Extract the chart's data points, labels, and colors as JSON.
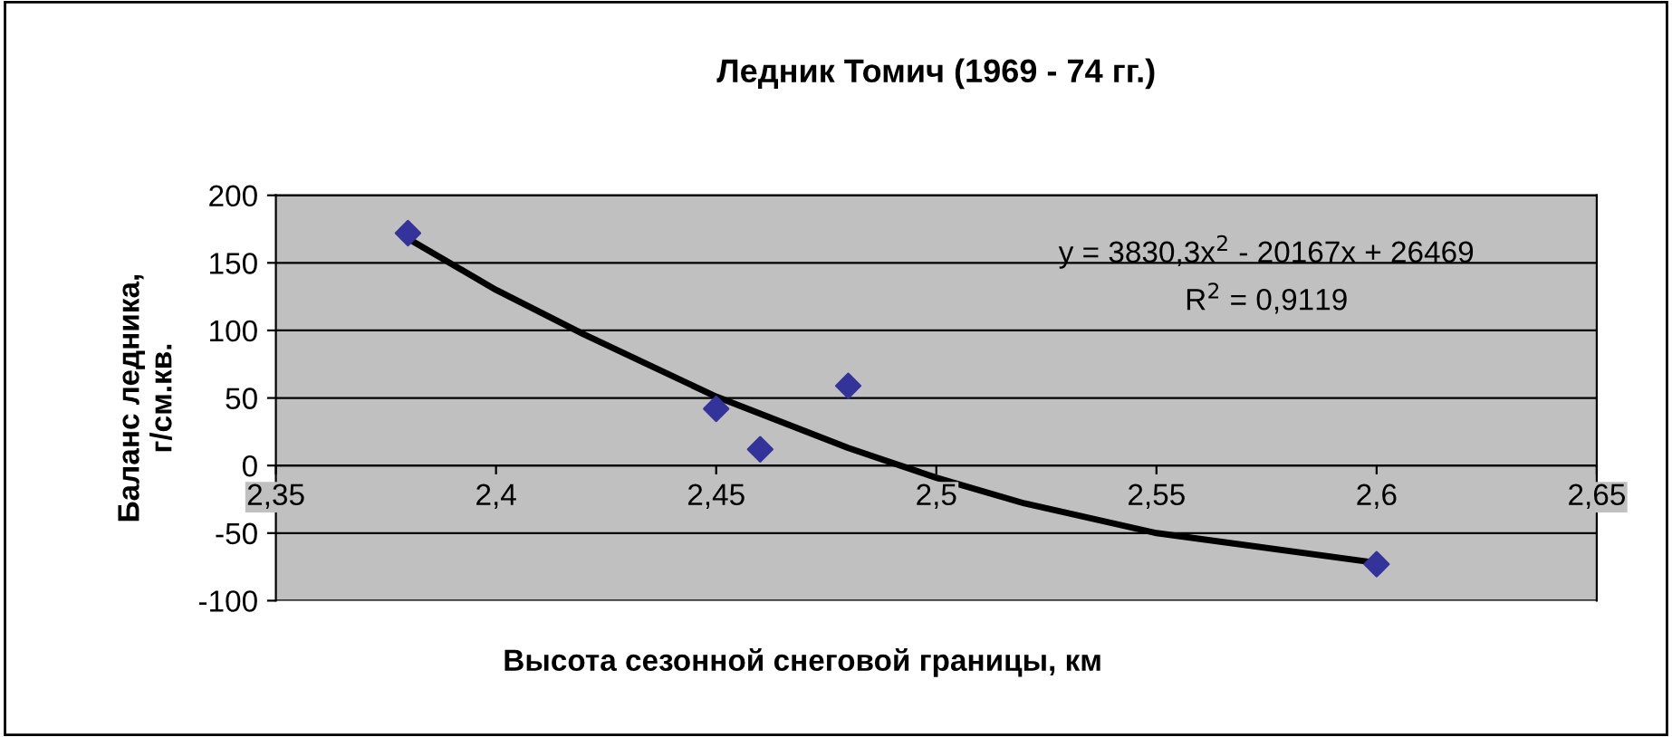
{
  "chart_data": {
    "type": "scatter",
    "title": "Ледник Томич (1969 - 74 гг.)",
    "xlabel": "Высота сезонной снеговой границы, км",
    "ylabel": "Баланс ледника,\nг/см.кв.",
    "series": [
      {
        "color": "#333399",
        "marker": "diamond",
        "x": [
          2.38,
          2.45,
          2.46,
          2.48,
          2.5,
          2.6
        ],
        "values": [
          172,
          42,
          12,
          59,
          -23,
          -73
        ]
      },
      {
        "type": "line",
        "color": "#000000",
        "marker": "none",
        "line_style": "solid",
        "x": [
          2.38,
          2.4,
          2.42,
          2.45,
          2.48,
          2.5,
          2.52,
          2.55,
          2.6
        ],
        "values": [
          168,
          130,
          97,
          51,
          13,
          -9,
          -28,
          -50,
          -72
        ]
      }
    ],
    "xlim": [
      2.35,
      2.65
    ],
    "xticks": [
      {
        "value": 2.35,
        "label": "2,35"
      },
      {
        "value": 2.4,
        "label": "2,4"
      },
      {
        "value": 2.45,
        "label": "2,45"
      },
      {
        "value": 2.5,
        "label": "2,5"
      },
      {
        "value": 2.55,
        "label": "2,55"
      },
      {
        "value": 2.6,
        "label": "2,6"
      },
      {
        "value": 2.65,
        "label": "2,65"
      }
    ],
    "ylim": [
      -100,
      200
    ],
    "yticks": [
      -100,
      -50,
      0,
      50,
      100,
      150,
      200
    ],
    "grid": "y",
    "legend": false,
    "annotations": [
      "y = 3830,3x$^{2}$ - 20167x + 26469",
      "R$^{2}$ = 0,9119"
    ]
  }
}
